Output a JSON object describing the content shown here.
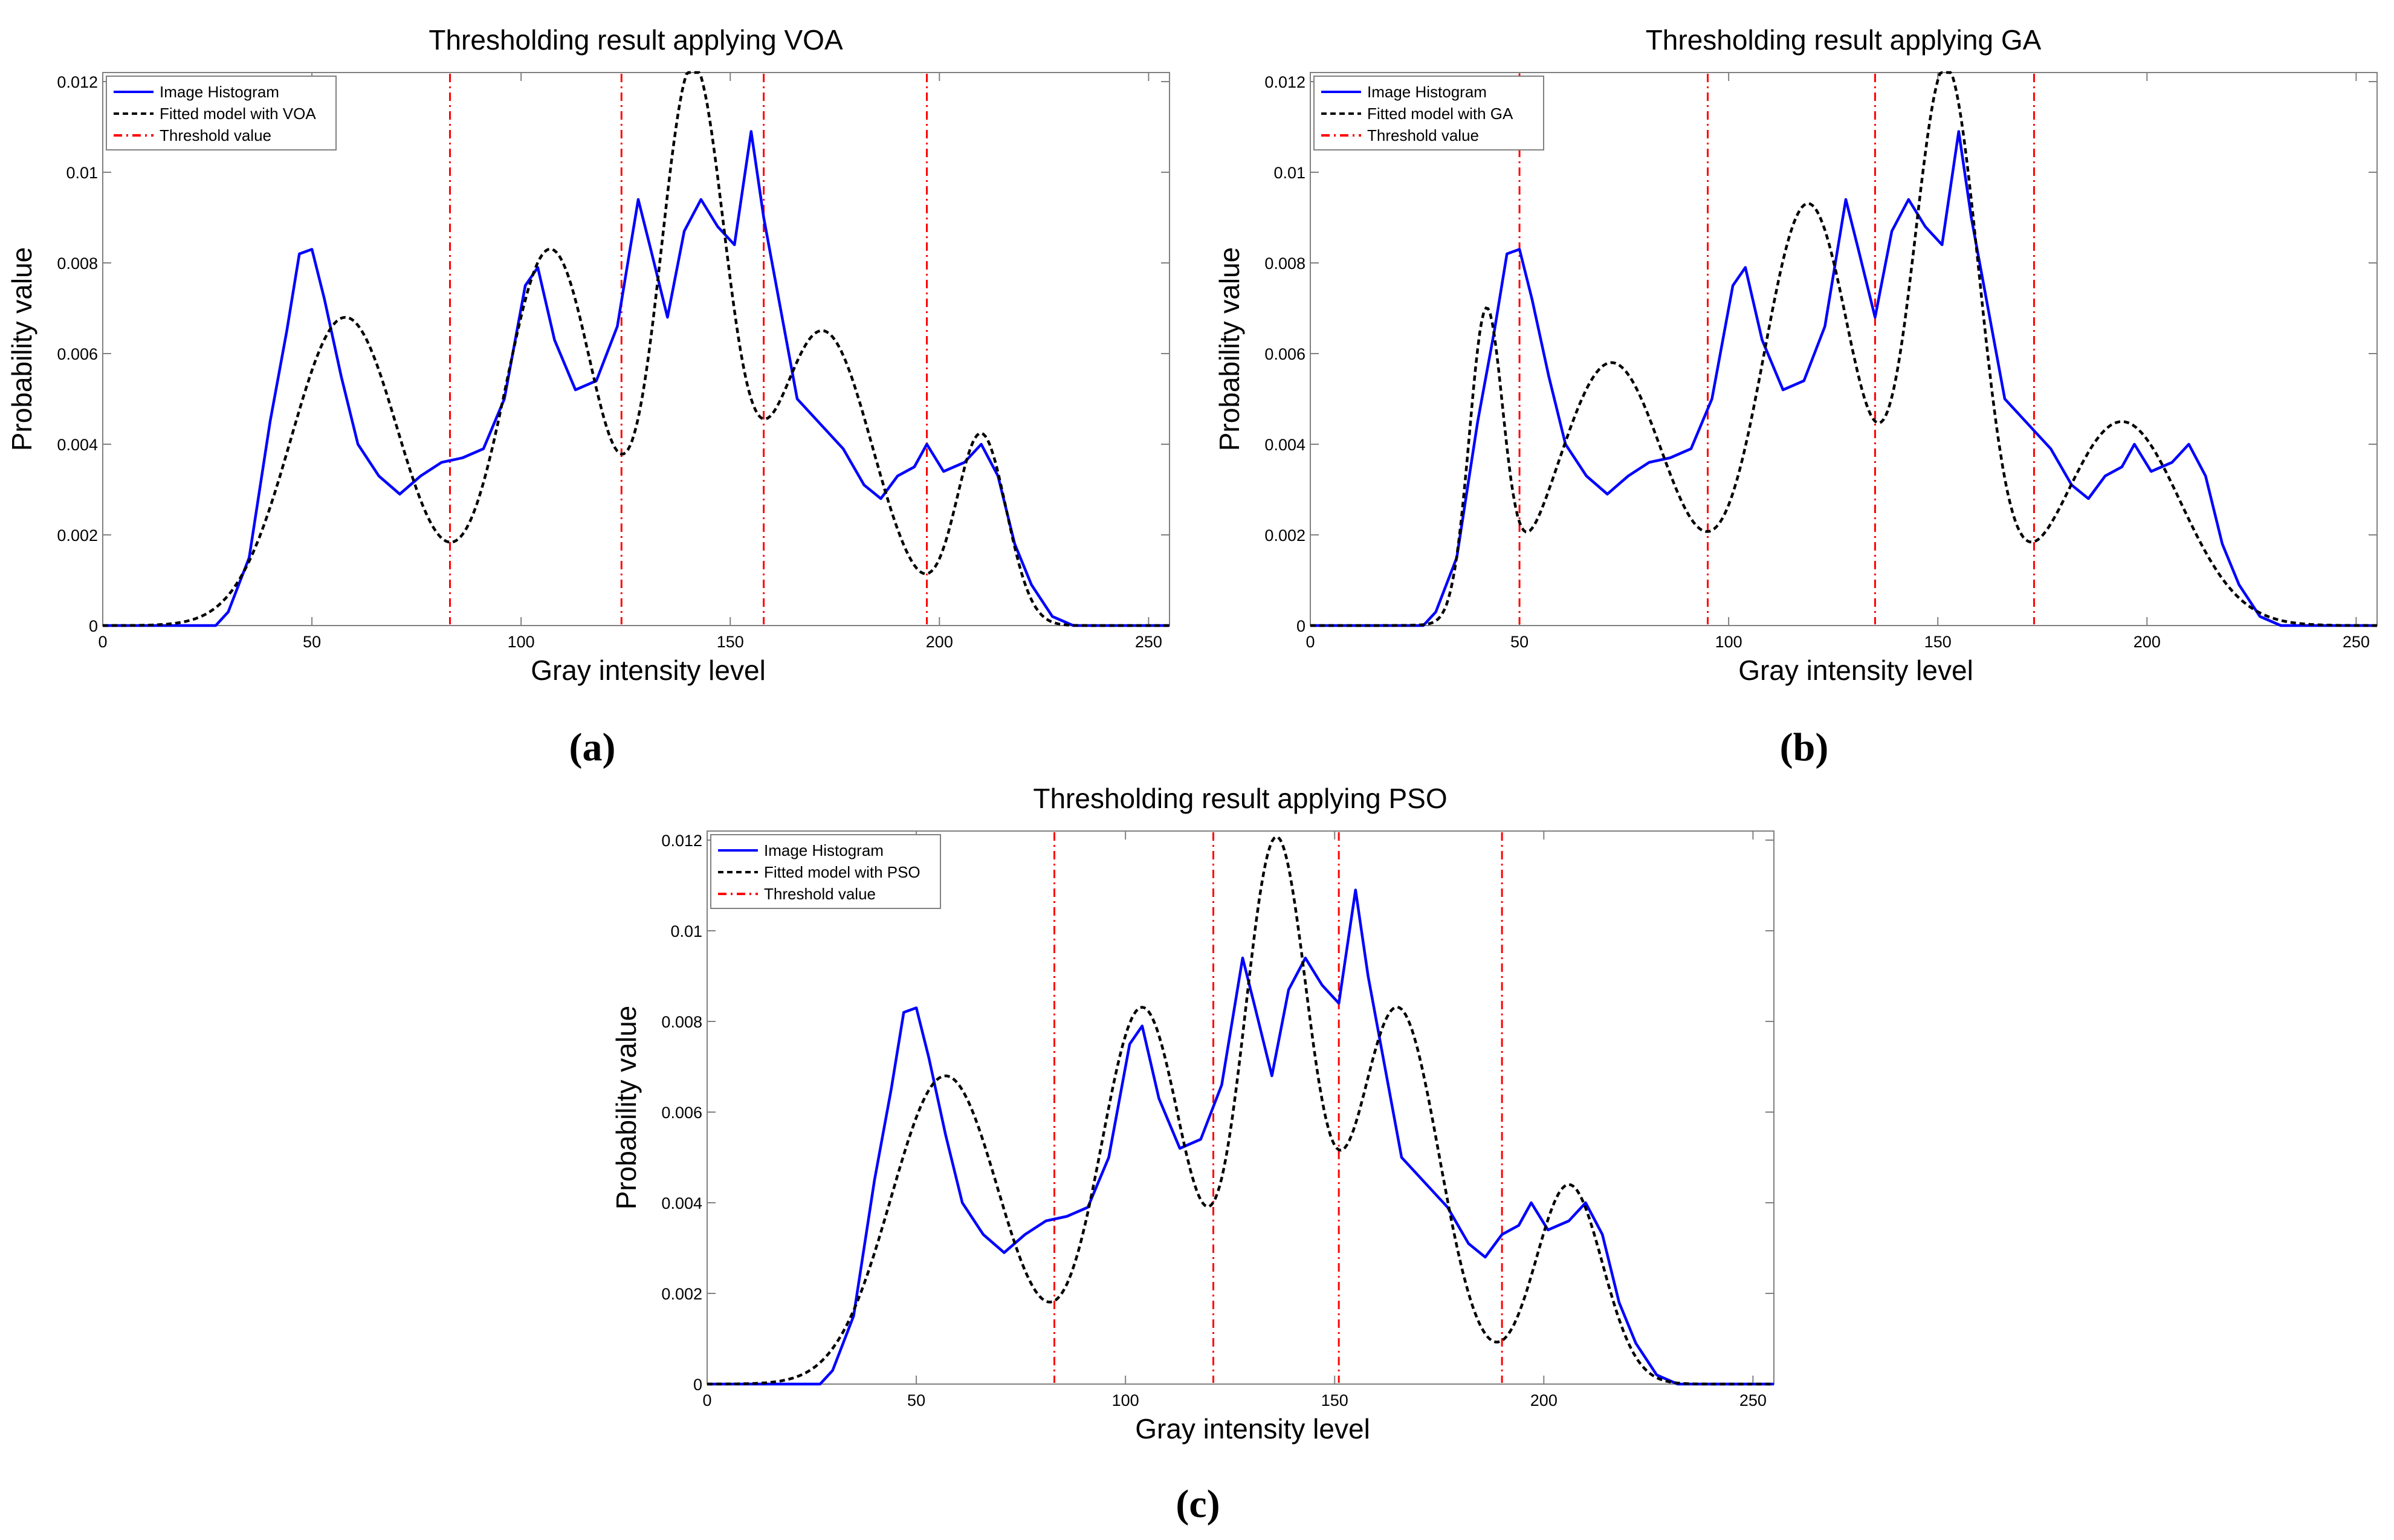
{
  "figure": {
    "panel_labels": [
      "(a)",
      "(b)",
      "(c)"
    ]
  },
  "colors": {
    "histogram": "#0000ff",
    "fitted_model": "#000000",
    "threshold": "#ff0000",
    "axes": "#808080",
    "text": "#000000"
  },
  "chart_data": [
    {
      "type": "line",
      "panel": "(a)",
      "title": "Thresholding result applying VOA",
      "xlabel": "Gray intensity level",
      "ylabel": "Probability value",
      "xlim": [
        0,
        255
      ],
      "ylim": [
        0,
        0.0122
      ],
      "xticks": [
        0,
        50,
        100,
        150,
        200,
        250
      ],
      "yticks": [
        0,
        0.002,
        0.004,
        0.006,
        0.008,
        0.01,
        0.012
      ],
      "ytick_labels": [
        "0",
        "0.002",
        "0.004",
        "0.006",
        "0.008",
        "0.01",
        "0.012"
      ],
      "legend": [
        "Image Histogram",
        "Fitted model with VOA",
        "Threshold value"
      ],
      "legend_position": "top-left",
      "histogram_points": [
        [
          0,
          0
        ],
        [
          27,
          0
        ],
        [
          30,
          0.0003
        ],
        [
          35,
          0.0015
        ],
        [
          40,
          0.0045
        ],
        [
          44,
          0.0065
        ],
        [
          47,
          0.0082
        ],
        [
          50,
          0.0083
        ],
        [
          53,
          0.0072
        ],
        [
          57,
          0.0055
        ],
        [
          61,
          0.004
        ],
        [
          66,
          0.0033
        ],
        [
          71,
          0.0029
        ],
        [
          76,
          0.0033
        ],
        [
          81,
          0.0036
        ],
        [
          86,
          0.0037
        ],
        [
          91,
          0.0039
        ],
        [
          96,
          0.005
        ],
        [
          101,
          0.0075
        ],
        [
          104,
          0.0079
        ],
        [
          108,
          0.0063
        ],
        [
          113,
          0.0052
        ],
        [
          118,
          0.0054
        ],
        [
          123,
          0.0066
        ],
        [
          128,
          0.0094
        ],
        [
          131,
          0.0083
        ],
        [
          135,
          0.0068
        ],
        [
          139,
          0.0087
        ],
        [
          143,
          0.0094
        ],
        [
          147,
          0.0088
        ],
        [
          151,
          0.0084
        ],
        [
          155,
          0.0109
        ],
        [
          158,
          0.009
        ],
        [
          162,
          0.007
        ],
        [
          166,
          0.005
        ],
        [
          172,
          0.0044
        ],
        [
          177,
          0.0039
        ],
        [
          182,
          0.0031
        ],
        [
          186,
          0.0028
        ],
        [
          190,
          0.0033
        ],
        [
          194,
          0.0035
        ],
        [
          197,
          0.004
        ],
        [
          201,
          0.0034
        ],
        [
          206,
          0.0036
        ],
        [
          210,
          0.004
        ],
        [
          214,
          0.0033
        ],
        [
          218,
          0.0018
        ],
        [
          222,
          0.0009
        ],
        [
          227,
          0.0002
        ],
        [
          232,
          0
        ],
        [
          255,
          0
        ]
      ],
      "fitted_model": [
        {
          "mean": 58,
          "sd": 13,
          "amp": 0.0068
        },
        {
          "mean": 107,
          "sd": 11,
          "amp": 0.0083
        },
        {
          "mean": 141,
          "sd": 8,
          "amp": 0.0121
        },
        {
          "mean": 172,
          "sd": 12,
          "amp": 0.0065
        },
        {
          "mean": 210,
          "sd": 6,
          "amp": 0.0042
        }
      ],
      "thresholds": [
        83,
        124,
        158,
        197
      ]
    },
    {
      "type": "line",
      "panel": "(b)",
      "title": "Thresholding result applying GA",
      "xlabel": "Gray intensity level",
      "ylabel": "Probability value",
      "xlim": [
        0,
        255
      ],
      "ylim": [
        0,
        0.0122
      ],
      "xticks": [
        0,
        50,
        100,
        150,
        200,
        250
      ],
      "yticks": [
        0,
        0.002,
        0.004,
        0.006,
        0.008,
        0.01,
        0.012
      ],
      "ytick_labels": [
        "0",
        "0.002",
        "0.004",
        "0.006",
        "0.008",
        "0.01",
        "0.012"
      ],
      "legend": [
        "Image Histogram",
        "Fitted model with GA",
        "Threshold value"
      ],
      "legend_position": "top-left",
      "histogram_points": [
        [
          0,
          0
        ],
        [
          27,
          0
        ],
        [
          30,
          0.0003
        ],
        [
          35,
          0.0015
        ],
        [
          40,
          0.0045
        ],
        [
          44,
          0.0065
        ],
        [
          47,
          0.0082
        ],
        [
          50,
          0.0083
        ],
        [
          53,
          0.0072
        ],
        [
          57,
          0.0055
        ],
        [
          61,
          0.004
        ],
        [
          66,
          0.0033
        ],
        [
          71,
          0.0029
        ],
        [
          76,
          0.0033
        ],
        [
          81,
          0.0036
        ],
        [
          86,
          0.0037
        ],
        [
          91,
          0.0039
        ],
        [
          96,
          0.005
        ],
        [
          101,
          0.0075
        ],
        [
          104,
          0.0079
        ],
        [
          108,
          0.0063
        ],
        [
          113,
          0.0052
        ],
        [
          118,
          0.0054
        ],
        [
          123,
          0.0066
        ],
        [
          128,
          0.0094
        ],
        [
          131,
          0.0083
        ],
        [
          135,
          0.0068
        ],
        [
          139,
          0.0087
        ],
        [
          143,
          0.0094
        ],
        [
          147,
          0.0088
        ],
        [
          151,
          0.0084
        ],
        [
          155,
          0.0109
        ],
        [
          158,
          0.009
        ],
        [
          162,
          0.007
        ],
        [
          166,
          0.005
        ],
        [
          172,
          0.0044
        ],
        [
          177,
          0.0039
        ],
        [
          182,
          0.0031
        ],
        [
          186,
          0.0028
        ],
        [
          190,
          0.0033
        ],
        [
          194,
          0.0035
        ],
        [
          197,
          0.004
        ],
        [
          201,
          0.0034
        ],
        [
          206,
          0.0036
        ],
        [
          210,
          0.004
        ],
        [
          214,
          0.0033
        ],
        [
          218,
          0.0018
        ],
        [
          222,
          0.0009
        ],
        [
          227,
          0.0002
        ],
        [
          232,
          0
        ],
        [
          255,
          0
        ]
      ],
      "fitted_model": [
        {
          "mean": 42,
          "sd": 4,
          "amp": 0.0066
        },
        {
          "mean": 72,
          "sd": 13,
          "amp": 0.0058
        },
        {
          "mean": 119,
          "sd": 11,
          "amp": 0.0093
        },
        {
          "mean": 152,
          "sd": 8,
          "amp": 0.0122
        },
        {
          "mean": 194,
          "sd": 14,
          "amp": 0.0045
        }
      ],
      "thresholds": [
        50,
        95,
        135,
        173
      ]
    },
    {
      "type": "line",
      "panel": "(c)",
      "title": "Thresholding result applying PSO",
      "xlabel": "Gray intensity level",
      "ylabel": "Probability value",
      "xlim": [
        0,
        255
      ],
      "ylim": [
        0,
        0.0122
      ],
      "xticks": [
        0,
        50,
        100,
        150,
        200,
        250
      ],
      "yticks": [
        0,
        0.002,
        0.004,
        0.006,
        0.008,
        0.01,
        0.012
      ],
      "ytick_labels": [
        "0",
        "0.002",
        "0.004",
        "0.006",
        "0.008",
        "0.01",
        "0.012"
      ],
      "legend": [
        "Image Histogram",
        "Fitted model with PSO",
        "Threshold value"
      ],
      "legend_position": "top-left",
      "histogram_points": [
        [
          0,
          0
        ],
        [
          27,
          0
        ],
        [
          30,
          0.0003
        ],
        [
          35,
          0.0015
        ],
        [
          40,
          0.0045
        ],
        [
          44,
          0.0065
        ],
        [
          47,
          0.0082
        ],
        [
          50,
          0.0083
        ],
        [
          53,
          0.0072
        ],
        [
          57,
          0.0055
        ],
        [
          61,
          0.004
        ],
        [
          66,
          0.0033
        ],
        [
          71,
          0.0029
        ],
        [
          76,
          0.0033
        ],
        [
          81,
          0.0036
        ],
        [
          86,
          0.0037
        ],
        [
          91,
          0.0039
        ],
        [
          96,
          0.005
        ],
        [
          101,
          0.0075
        ],
        [
          104,
          0.0079
        ],
        [
          108,
          0.0063
        ],
        [
          113,
          0.0052
        ],
        [
          118,
          0.0054
        ],
        [
          123,
          0.0066
        ],
        [
          128,
          0.0094
        ],
        [
          131,
          0.0083
        ],
        [
          135,
          0.0068
        ],
        [
          139,
          0.0087
        ],
        [
          143,
          0.0094
        ],
        [
          147,
          0.0088
        ],
        [
          151,
          0.0084
        ],
        [
          155,
          0.0109
        ],
        [
          158,
          0.009
        ],
        [
          162,
          0.007
        ],
        [
          166,
          0.005
        ],
        [
          172,
          0.0044
        ],
        [
          177,
          0.0039
        ],
        [
          182,
          0.0031
        ],
        [
          186,
          0.0028
        ],
        [
          190,
          0.0033
        ],
        [
          194,
          0.0035
        ],
        [
          197,
          0.004
        ],
        [
          201,
          0.0034
        ],
        [
          206,
          0.0036
        ],
        [
          210,
          0.004
        ],
        [
          214,
          0.0033
        ],
        [
          218,
          0.0018
        ],
        [
          222,
          0.0009
        ],
        [
          227,
          0.0002
        ],
        [
          232,
          0
        ],
        [
          255,
          0
        ]
      ],
      "fitted_model": [
        {
          "mean": 57,
          "sd": 13,
          "amp": 0.0068
        },
        {
          "mean": 104,
          "sd": 10,
          "amp": 0.0083
        },
        {
          "mean": 136,
          "sd": 8,
          "amp": 0.0119
        },
        {
          "mean": 165,
          "sd": 10,
          "amp": 0.0083
        },
        {
          "mean": 206,
          "sd": 8,
          "amp": 0.0044
        }
      ],
      "thresholds": [
        83,
        121,
        151,
        190
      ]
    }
  ]
}
